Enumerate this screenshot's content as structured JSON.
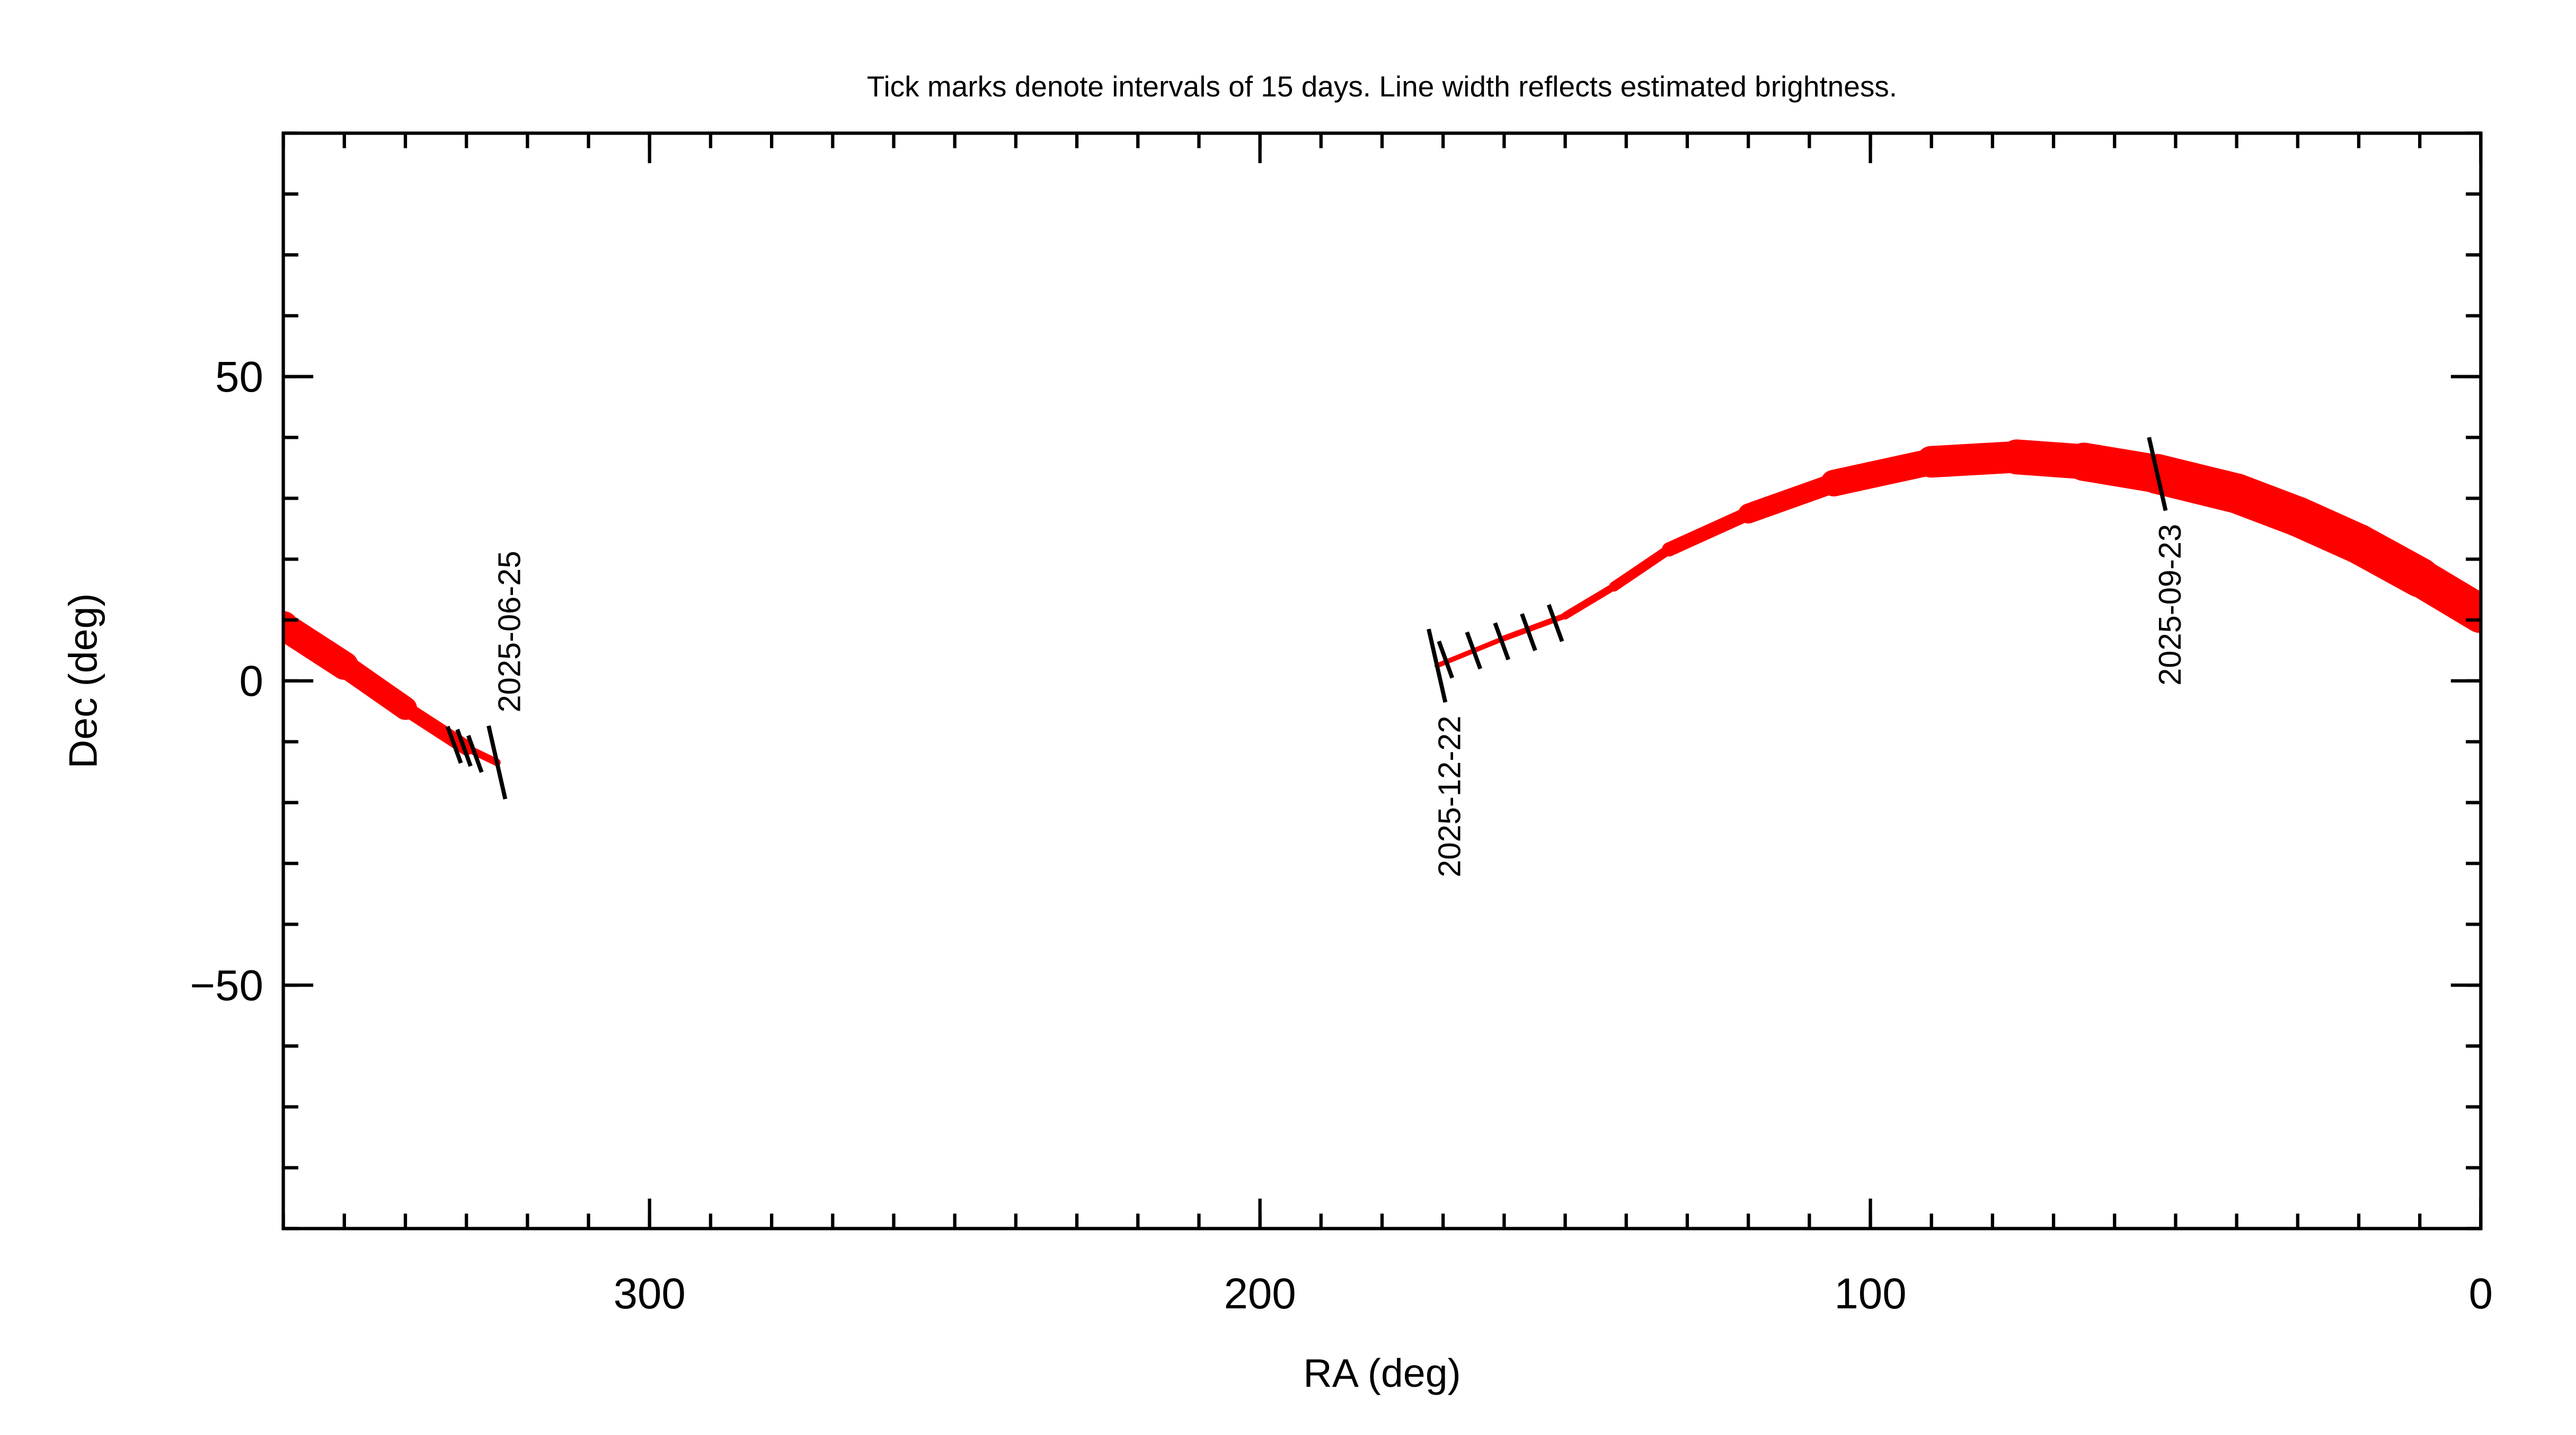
{
  "chart_data": {
    "type": "line",
    "title": "Tick marks denote intervals of 15 days.  Line width reflects estimated brightness.",
    "x_label": "RA (deg)",
    "y_label": "Dec (deg)",
    "xlim": [
      360,
      0
    ],
    "ylim": [
      -90,
      90
    ],
    "xticks": [
      300,
      200,
      100,
      0
    ],
    "yticks": [
      -50,
      0,
      50
    ],
    "minor_tick_step": 10,
    "series": [
      {
        "color": "#ff0000",
        "x": [
          325,
          330,
          340,
          350,
          360,
          null,
          0,
          10,
          20,
          30,
          40,
          53,
          65,
          76,
          90,
          106,
          120,
          133,
          142,
          150,
          160,
          171
        ],
        "y": [
          -13.4,
          -11,
          -4.5,
          2.5,
          9,
          null,
          11,
          17,
          22.5,
          27,
          30.8,
          34,
          36,
          36.8,
          36,
          32.5,
          27.5,
          21.6,
          15.5,
          10.7,
          7,
          2.5
        ],
        "sizes": [
          3,
          6,
          12,
          16,
          18,
          null,
          22,
          24,
          24,
          24,
          24,
          24,
          22,
          20,
          18,
          14,
          10,
          7,
          5,
          4,
          3,
          3
        ]
      }
    ],
    "day_ticks": {
      "x": [
        332,
        330.4,
        328.6,
        169.6,
        165,
        160.4,
        156,
        151.6
      ],
      "y": [
        -10.5,
        -11,
        -12,
        3.5,
        5,
        6.5,
        8,
        9.5
      ]
    },
    "annotations": [
      {
        "text": "2025-06-25",
        "x": 325,
        "y": -13.4
      },
      {
        "text": "2025-12-22",
        "x": 171,
        "y": 2.5
      },
      {
        "text": "2025-09-23",
        "x": 53,
        "y": 34
      }
    ]
  }
}
